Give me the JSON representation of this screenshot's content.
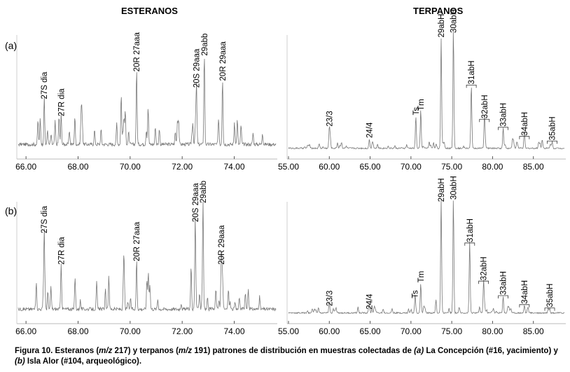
{
  "titles": {
    "esteranos": "ESTERANOS",
    "terpanos": "TERPANOS"
  },
  "panel_letters": [
    "(a)",
    "(b)"
  ],
  "caption": {
    "p1": "Figura 10.  Esteranos (",
    "mz1": "m/z",
    "p2": " 217) y terpanos (",
    "mz2": "m/z",
    "p3": " 191) patrones de distribución en muestras colectadas de ",
    "a": "(a)",
    "p4": " La Concepción (#16, yacimiento) y ",
    "b": "(b)",
    "p5": " Isla Alor (#104, arqueológico)."
  },
  "chart_data": [
    {
      "id": "esteranos-a",
      "type": "line",
      "title": "ESTERANOS",
      "panel": "(a)",
      "xlim": [
        65.7,
        75.6
      ],
      "xticks": [
        66.0,
        68.0,
        70.0,
        72.0,
        74.0
      ],
      "tick_labels": [
        "66.00",
        "68.00",
        "70.00",
        "72.00",
        "74.00"
      ],
      "series_color": "#777777",
      "peaks": [
        {
          "x": 66.7,
          "h": 0.42,
          "label": "27S dia"
        },
        {
          "x": 67.35,
          "h": 0.27,
          "label": "27R dia"
        },
        {
          "x": 70.25,
          "h": 0.66,
          "label": "20R 27aaa"
        },
        {
          "x": 72.55,
          "h": 0.52,
          "label": "20S 29aaa"
        },
        {
          "x": 72.85,
          "h": 0.8,
          "label": "29abb"
        },
        {
          "x": 73.55,
          "h": 0.58,
          "label": "20R 29aaa"
        }
      ]
    },
    {
      "id": "terpanos-a",
      "type": "line",
      "title": "TERPANOS",
      "panel": "(a)",
      "xlim": [
        55.0,
        88.8
      ],
      "xticks": [
        55.0,
        60.0,
        65.0,
        70.0,
        75.0,
        80.0,
        85.0
      ],
      "tick_labels": [
        "55.00",
        "60.00",
        "65.00",
        "70.00",
        "75.00",
        "80.00",
        "85.00"
      ],
      "series_color": "#777777",
      "peaks": [
        {
          "x": 60.0,
          "h": 0.18,
          "label": "23/3"
        },
        {
          "x": 64.9,
          "h": 0.08,
          "label": "24/4"
        },
        {
          "x": 70.6,
          "h": 0.28,
          "label": "Ts"
        },
        {
          "x": 71.2,
          "h": 0.32,
          "label": "Tm"
        },
        {
          "x": 73.7,
          "h": 0.96,
          "label": "29abH"
        },
        {
          "x": 75.2,
          "h": 1.0,
          "label": "30abH"
        },
        {
          "x": 77.4,
          "h": 0.55,
          "label": "31abH"
        },
        {
          "x": 79.0,
          "h": 0.25,
          "label": "32abH"
        },
        {
          "x": 81.3,
          "h": 0.18,
          "label": "33abH"
        },
        {
          "x": 83.9,
          "h": 0.1,
          "label": "34abH"
        },
        {
          "x": 87.3,
          "h": 0.06,
          "label": "35abH"
        }
      ]
    },
    {
      "id": "esteranos-b",
      "type": "line",
      "title": "ESTERANOS",
      "panel": "(b)",
      "xlim": [
        65.7,
        75.6
      ],
      "xticks": [
        66.0,
        68.0,
        70.0,
        72.0,
        74.0
      ],
      "tick_labels": [
        "66.00",
        "68.00",
        "70.00",
        "72.00",
        "74.00"
      ],
      "series_color": "#777777",
      "peaks": [
        {
          "x": 66.7,
          "h": 0.7,
          "label": "27S dia"
        },
        {
          "x": 67.35,
          "h": 0.42,
          "label": "27R dia"
        },
        {
          "x": 70.25,
          "h": 0.45,
          "label": "20R 27aaa"
        },
        {
          "x": 72.5,
          "h": 0.8,
          "label": "20S 29aaa"
        },
        {
          "x": 72.8,
          "h": 0.97,
          "label": "29abb"
        },
        {
          "x": 73.5,
          "h": 0.42,
          "label": "20R 29aaa"
        }
      ]
    },
    {
      "id": "terpanos-b",
      "type": "line",
      "title": "TERPANOS",
      "panel": "(b)",
      "xlim": [
        55.0,
        88.8
      ],
      "xticks": [
        55.0,
        60.0,
        65.0,
        70.0,
        75.0,
        80.0,
        85.0
      ],
      "tick_labels": [
        "55.00",
        "60.00",
        "65.00",
        "70.00",
        "75.00",
        "80.00",
        "85.00"
      ],
      "series_color": "#777777",
      "peaks": [
        {
          "x": 60.0,
          "h": 0.05,
          "label": "23/3"
        },
        {
          "x": 64.9,
          "h": 0.02,
          "label": "24/4"
        },
        {
          "x": 70.5,
          "h": 0.12,
          "label": "Ts"
        },
        {
          "x": 71.2,
          "h": 0.26,
          "label": "Tm"
        },
        {
          "x": 73.7,
          "h": 0.98,
          "label": "29abH"
        },
        {
          "x": 75.2,
          "h": 1.0,
          "label": "30abH"
        },
        {
          "x": 77.2,
          "h": 0.62,
          "label": "31abH"
        },
        {
          "x": 78.9,
          "h": 0.28,
          "label": "32abH"
        },
        {
          "x": 81.3,
          "h": 0.15,
          "label": "33abH"
        },
        {
          "x": 83.9,
          "h": 0.07,
          "label": "34abH"
        },
        {
          "x": 87.0,
          "h": 0.04,
          "label": "35abH"
        }
      ]
    }
  ]
}
